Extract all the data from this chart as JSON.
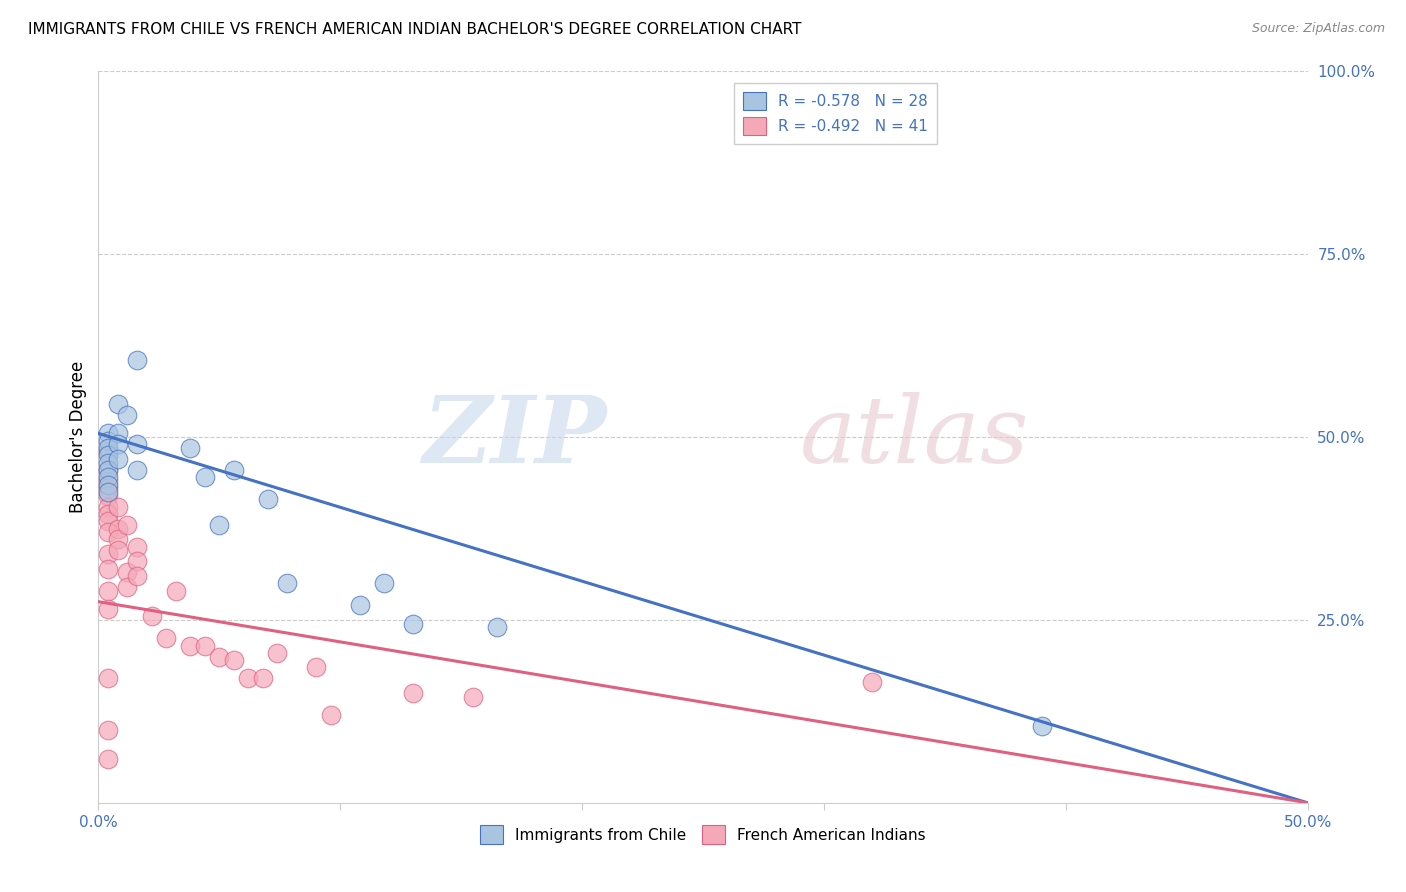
{
  "title": "IMMIGRANTS FROM CHILE VS FRENCH AMERICAN INDIAN BACHELOR'S DEGREE CORRELATION CHART",
  "source": "Source: ZipAtlas.com",
  "ylabel": "Bachelor's Degree",
  "legend_blue": "R = -0.578   N = 28",
  "legend_pink": "R = -0.492   N = 41",
  "legend_bottom_blue": "Immigrants from Chile",
  "legend_bottom_pink": "French American Indians",
  "blue_color": "#a8c4e0",
  "pink_color": "#f4a8b8",
  "blue_line_color": "#4472c4",
  "pink_line_color": "#e06080",
  "blue_scatter_x": [
    0.004,
    0.004,
    0.004,
    0.004,
    0.004,
    0.004,
    0.004,
    0.004,
    0.004,
    0.008,
    0.008,
    0.008,
    0.008,
    0.012,
    0.016,
    0.016,
    0.016,
    0.038,
    0.044,
    0.05,
    0.056,
    0.07,
    0.078,
    0.108,
    0.118,
    0.13,
    0.165,
    0.39
  ],
  "blue_scatter_y": [
    0.505,
    0.495,
    0.485,
    0.475,
    0.465,
    0.455,
    0.445,
    0.435,
    0.425,
    0.545,
    0.505,
    0.49,
    0.47,
    0.53,
    0.605,
    0.49,
    0.455,
    0.485,
    0.445,
    0.38,
    0.455,
    0.415,
    0.3,
    0.27,
    0.3,
    0.245,
    0.24,
    0.105
  ],
  "blue_line_x": [
    0.0,
    0.5
  ],
  "blue_line_y": [
    0.505,
    0.0
  ],
  "pink_scatter_x": [
    0.004,
    0.004,
    0.004,
    0.004,
    0.004,
    0.004,
    0.004,
    0.004,
    0.004,
    0.004,
    0.004,
    0.004,
    0.004,
    0.004,
    0.004,
    0.008,
    0.008,
    0.008,
    0.008,
    0.012,
    0.012,
    0.012,
    0.016,
    0.016,
    0.016,
    0.022,
    0.028,
    0.032,
    0.038,
    0.044,
    0.05,
    0.056,
    0.062,
    0.068,
    0.074,
    0.09,
    0.096,
    0.13,
    0.155,
    0.32,
    0.004
  ],
  "pink_scatter_y": [
    0.455,
    0.44,
    0.43,
    0.42,
    0.405,
    0.395,
    0.385,
    0.37,
    0.34,
    0.32,
    0.29,
    0.265,
    0.17,
    0.1,
    0.06,
    0.405,
    0.375,
    0.36,
    0.345,
    0.38,
    0.315,
    0.295,
    0.35,
    0.33,
    0.31,
    0.255,
    0.225,
    0.29,
    0.215,
    0.215,
    0.2,
    0.195,
    0.17,
    0.17,
    0.205,
    0.185,
    0.12,
    0.15,
    0.145,
    0.165,
    0.48
  ],
  "pink_line_x": [
    0.0,
    0.5
  ],
  "pink_line_y": [
    0.275,
    0.0
  ],
  "xlim": [
    0.0,
    0.5
  ],
  "ylim": [
    0.0,
    1.0
  ],
  "bg_color": "#ffffff",
  "grid_color": "#cccccc",
  "right_axis_color": "#4472c4",
  "x_tick_positions": [
    0.0,
    0.1,
    0.2,
    0.3,
    0.4,
    0.5
  ]
}
